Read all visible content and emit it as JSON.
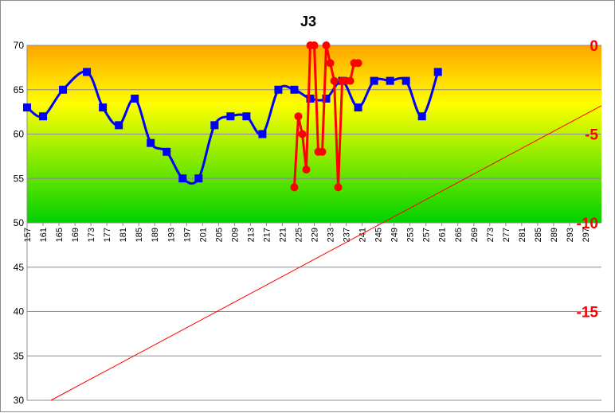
{
  "chart_data": {
    "type": "line",
    "title": "J3",
    "colors": {
      "blue_series": "#0000ff",
      "red_series": "#ff0000",
      "trend": "#ff0000",
      "grid": "#8c8c8c"
    },
    "background_gradient": [
      "#ffa500",
      "#ffff00",
      "#00d200"
    ],
    "x_ticks": [
      "157",
      "161",
      "165",
      "169",
      "173",
      "177",
      "181",
      "185",
      "189",
      "193",
      "197",
      "201",
      "205",
      "209",
      "213",
      "217",
      "221",
      "225",
      "229",
      "233",
      "237",
      "241",
      "245",
      "249",
      "253",
      "257",
      "261",
      "265",
      "269",
      "273",
      "277",
      "281",
      "285",
      "289",
      "293",
      "297"
    ],
    "xlim": [
      157,
      301
    ],
    "y_left": {
      "ticks": [
        "70",
        "65",
        "60",
        "55",
        "50",
        "45",
        "40",
        "35",
        "30"
      ],
      "min": 30,
      "max": 70
    },
    "y_right": {
      "ticks": [
        "0",
        "-5",
        "-10",
        "-15"
      ],
      "min": -20,
      "max": 0
    },
    "grid": true,
    "series": [
      {
        "axis": "left",
        "marker": "square",
        "x": [
          157,
          161,
          166,
          172,
          176,
          180,
          184,
          188,
          192,
          196,
          200,
          204,
          208,
          212,
          216,
          220,
          224,
          228,
          232,
          236,
          240,
          244,
          248,
          252,
          256,
          260
        ],
        "y": [
          63,
          62,
          65,
          67,
          63,
          61,
          64,
          59,
          58,
          55,
          55,
          61,
          62,
          62,
          60,
          65,
          65,
          64,
          64,
          66,
          63,
          66,
          66,
          66,
          62,
          67
        ]
      },
      {
        "axis": "right",
        "marker": "circle",
        "x": [
          224,
          225,
          226,
          227,
          228,
          229,
          230,
          231,
          232,
          233,
          234,
          235,
          236,
          237,
          238,
          239,
          240
        ],
        "y": [
          -8,
          -4,
          -5,
          -7,
          0,
          0,
          -6,
          -6,
          0,
          -1,
          -2,
          -8,
          -2,
          -2,
          -2,
          -1,
          -1
        ]
      }
    ],
    "trendline": {
      "x": [
        163,
        301
      ],
      "y": [
        30,
        63.2
      ]
    }
  }
}
